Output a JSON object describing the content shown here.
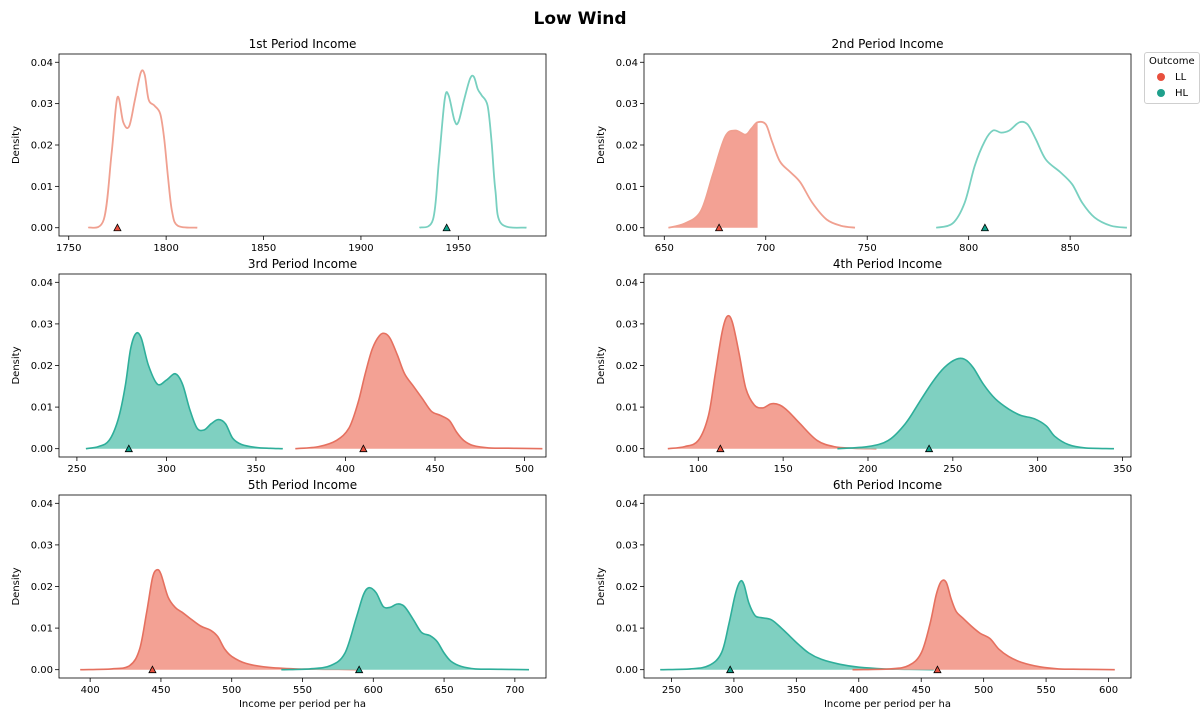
{
  "figure": {
    "title": "Low Wind",
    "ylabel": "Density",
    "xlabel": "Income per period per ha",
    "legend": {
      "title": "Outcome",
      "entries": [
        {
          "label": "LL",
          "color": "#e8503e"
        },
        {
          "label": "HL",
          "color": "#1fa08c"
        }
      ]
    }
  },
  "colors": {
    "LL_line": "#f0a090",
    "HL_line": "#78d0c0",
    "LL_fill": "#f3a194",
    "HL_fill": "#7fd0c1",
    "LL_stroke": "#e5705f",
    "HL_stroke": "#2eae9a",
    "LL_marker": "#e8503e",
    "HL_marker": "#10a08a"
  },
  "chart_data": [
    {
      "type": "area",
      "title": "1st Period Income",
      "xlim": [
        1745,
        1995
      ],
      "ylim": [
        0,
        0.04
      ],
      "xticks": [
        1750,
        1800,
        1850,
        1900,
        1950
      ],
      "yticks": [
        0.0,
        0.01,
        0.02,
        0.03,
        0.04
      ],
      "series": [
        {
          "name": "LL",
          "style": "line",
          "x": [
            1760,
            1768,
            1772,
            1775,
            1778,
            1781,
            1784,
            1787,
            1789,
            1791,
            1794,
            1797,
            1799,
            1801,
            1803,
            1806,
            1816
          ],
          "y": [
            0.0,
            0.002,
            0.018,
            0.0315,
            0.0255,
            0.0245,
            0.031,
            0.0375,
            0.037,
            0.031,
            0.0295,
            0.0275,
            0.0215,
            0.012,
            0.004,
            0.0005,
            0.0
          ],
          "marker": 1775
        },
        {
          "name": "HL",
          "style": "line",
          "x": [
            1930,
            1937,
            1940,
            1943,
            1945,
            1948,
            1950,
            1953,
            1956,
            1958,
            1960,
            1962,
            1965,
            1967,
            1969,
            1972,
            1985
          ],
          "y": [
            0.0,
            0.002,
            0.016,
            0.031,
            0.032,
            0.026,
            0.0255,
            0.031,
            0.036,
            0.0365,
            0.0335,
            0.032,
            0.0295,
            0.021,
            0.009,
            0.001,
            0.0
          ],
          "marker": 1944
        }
      ]
    },
    {
      "type": "area",
      "title": "2nd Period Income",
      "xlim": [
        640,
        880
      ],
      "ylim": [
        0,
        0.04
      ],
      "xticks": [
        650,
        700,
        750,
        800,
        850
      ],
      "yticks": [
        0.0,
        0.01,
        0.02,
        0.03,
        0.04
      ],
      "series": [
        {
          "name": "LL",
          "style": "line",
          "fill_until": 696,
          "x": [
            652,
            660,
            668,
            674,
            680,
            685,
            690,
            693,
            696,
            700,
            703,
            707,
            712,
            717,
            723,
            730,
            737,
            744
          ],
          "y": [
            0.0,
            0.001,
            0.004,
            0.013,
            0.022,
            0.0235,
            0.0225,
            0.024,
            0.0255,
            0.025,
            0.021,
            0.016,
            0.0135,
            0.011,
            0.006,
            0.002,
            0.0005,
            0.0
          ],
          "marker": 677
        },
        {
          "name": "HL",
          "style": "line",
          "x": [
            784,
            792,
            798,
            803,
            808,
            812,
            816,
            820,
            825,
            829,
            833,
            838,
            845,
            851,
            856,
            862,
            870,
            878
          ],
          "y": [
            0.0,
            0.001,
            0.006,
            0.015,
            0.021,
            0.0235,
            0.023,
            0.0235,
            0.0255,
            0.025,
            0.0215,
            0.0165,
            0.0135,
            0.0105,
            0.006,
            0.0025,
            0.0005,
            0.0
          ],
          "marker": 808
        }
      ]
    },
    {
      "type": "area",
      "title": "3rd Period Income",
      "xlim": [
        240,
        512
      ],
      "ylim": [
        0,
        0.04
      ],
      "xticks": [
        250,
        300,
        350,
        400,
        450,
        500
      ],
      "yticks": [
        0.0,
        0.01,
        0.02,
        0.03,
        0.04
      ],
      "series": [
        {
          "name": "HL",
          "style": "fill",
          "x": [
            255,
            262,
            268,
            273,
            277,
            280,
            283,
            286,
            290,
            295,
            300,
            305,
            309,
            313,
            317,
            321,
            325,
            329,
            333,
            337,
            342,
            350,
            358,
            365
          ],
          "y": [
            0.0,
            0.0005,
            0.002,
            0.007,
            0.015,
            0.024,
            0.0277,
            0.0265,
            0.02,
            0.0155,
            0.0165,
            0.018,
            0.0155,
            0.0095,
            0.005,
            0.0045,
            0.006,
            0.007,
            0.006,
            0.0025,
            0.001,
            0.0003,
            0.0001,
            0.0
          ],
          "marker": 279
        },
        {
          "name": "LL",
          "style": "fill",
          "x": [
            372,
            385,
            395,
            402,
            407,
            411,
            415,
            419,
            422,
            425,
            429,
            433,
            438,
            443,
            448,
            453,
            458,
            462,
            466,
            471,
            480,
            495,
            510
          ],
          "y": [
            0.0,
            0.0005,
            0.002,
            0.005,
            0.011,
            0.018,
            0.024,
            0.0272,
            0.0277,
            0.0265,
            0.0225,
            0.018,
            0.015,
            0.012,
            0.009,
            0.008,
            0.0068,
            0.004,
            0.002,
            0.0008,
            0.0002,
            0.0001,
            0.0
          ],
          "marker": 410
        }
      ]
    },
    {
      "type": "area",
      "title": "4th Period Income",
      "xlim": [
        68,
        355
      ],
      "ylim": [
        0,
        0.04
      ],
      "xticks": [
        100,
        150,
        200,
        250,
        300,
        350
      ],
      "yticks": [
        0.0,
        0.01,
        0.02,
        0.03,
        0.04
      ],
      "series": [
        {
          "name": "LL",
          "style": "fill",
          "x": [
            82,
            92,
            100,
            106,
            110,
            114,
            117,
            120,
            124,
            128,
            133,
            138,
            143,
            148,
            153,
            160,
            170,
            180,
            192,
            205
          ],
          "y": [
            0.0,
            0.0005,
            0.002,
            0.008,
            0.018,
            0.028,
            0.0318,
            0.0305,
            0.023,
            0.0145,
            0.0105,
            0.0098,
            0.0108,
            0.0105,
            0.009,
            0.006,
            0.002,
            0.0005,
            0.0001,
            0.0
          ],
          "marker": 113
        },
        {
          "name": "HL",
          "style": "fill",
          "x": [
            182,
            200,
            212,
            222,
            230,
            238,
            245,
            252,
            257,
            262,
            268,
            275,
            283,
            290,
            298,
            305,
            310,
            318,
            328,
            345
          ],
          "y": [
            0.0,
            0.0005,
            0.002,
            0.006,
            0.011,
            0.016,
            0.0195,
            0.0215,
            0.0215,
            0.0195,
            0.0155,
            0.012,
            0.0095,
            0.008,
            0.0072,
            0.0055,
            0.003,
            0.001,
            0.0002,
            0.0
          ],
          "marker": 236
        }
      ]
    },
    {
      "type": "area",
      "title": "5th Period Income",
      "xlim": [
        378,
        722
      ],
      "ylim": [
        0,
        0.04
      ],
      "xticks": [
        400,
        450,
        500,
        550,
        600,
        650,
        700
      ],
      "yticks": [
        0.0,
        0.01,
        0.02,
        0.03,
        0.04
      ],
      "series": [
        {
          "name": "LL",
          "style": "fill",
          "x": [
            393,
            415,
            428,
            435,
            440,
            444,
            447,
            450,
            455,
            460,
            465,
            470,
            478,
            485,
            490,
            495,
            500,
            510,
            525,
            545,
            570,
            590
          ],
          "y": [
            0.0,
            0.0002,
            0.001,
            0.005,
            0.014,
            0.022,
            0.024,
            0.023,
            0.0175,
            0.015,
            0.0138,
            0.0125,
            0.0105,
            0.0095,
            0.008,
            0.005,
            0.0032,
            0.0015,
            0.0006,
            0.0002,
            0.0001,
            0.0
          ],
          "marker": 444
        },
        {
          "name": "HL",
          "style": "fill",
          "x": [
            535,
            555,
            570,
            580,
            588,
            593,
            597,
            602,
            607,
            612,
            617,
            622,
            628,
            634,
            640,
            645,
            650,
            655,
            662,
            672,
            690,
            710
          ],
          "y": [
            0.0,
            0.0002,
            0.001,
            0.004,
            0.0125,
            0.018,
            0.0197,
            0.0185,
            0.0152,
            0.015,
            0.0158,
            0.0152,
            0.0122,
            0.009,
            0.0082,
            0.0068,
            0.004,
            0.002,
            0.0008,
            0.0002,
            0.0001,
            0.0
          ],
          "marker": 590
        }
      ]
    },
    {
      "type": "area",
      "title": "6th Period Income",
      "xlim": [
        228,
        618
      ],
      "ylim": [
        0,
        0.04
      ],
      "xticks": [
        250,
        300,
        350,
        400,
        450,
        500,
        550,
        600
      ],
      "yticks": [
        0.0,
        0.01,
        0.02,
        0.03,
        0.04
      ],
      "series": [
        {
          "name": "HL",
          "style": "fill",
          "x": [
            241,
            265,
            280,
            290,
            296,
            301,
            305,
            308,
            312,
            317,
            322,
            330,
            338,
            345,
            352,
            360,
            370,
            385,
            400,
            420,
            440,
            460
          ],
          "y": [
            0.0,
            0.0002,
            0.001,
            0.004,
            0.011,
            0.018,
            0.0212,
            0.0205,
            0.016,
            0.013,
            0.0125,
            0.012,
            0.01,
            0.008,
            0.006,
            0.004,
            0.0025,
            0.0013,
            0.0006,
            0.0002,
            0.0001,
            0.0
          ],
          "marker": 297
        },
        {
          "name": "LL",
          "style": "fill",
          "x": [
            395,
            425,
            440,
            450,
            457,
            462,
            466,
            470,
            474,
            478,
            483,
            490,
            497,
            505,
            512,
            520,
            530,
            545,
            560,
            580,
            605
          ],
          "y": [
            0.0,
            0.0002,
            0.001,
            0.004,
            0.011,
            0.018,
            0.0212,
            0.021,
            0.017,
            0.014,
            0.0125,
            0.0105,
            0.0088,
            0.0075,
            0.005,
            0.0032,
            0.0018,
            0.0007,
            0.0002,
            0.0001,
            0.0
          ],
          "marker": 463
        }
      ]
    }
  ]
}
